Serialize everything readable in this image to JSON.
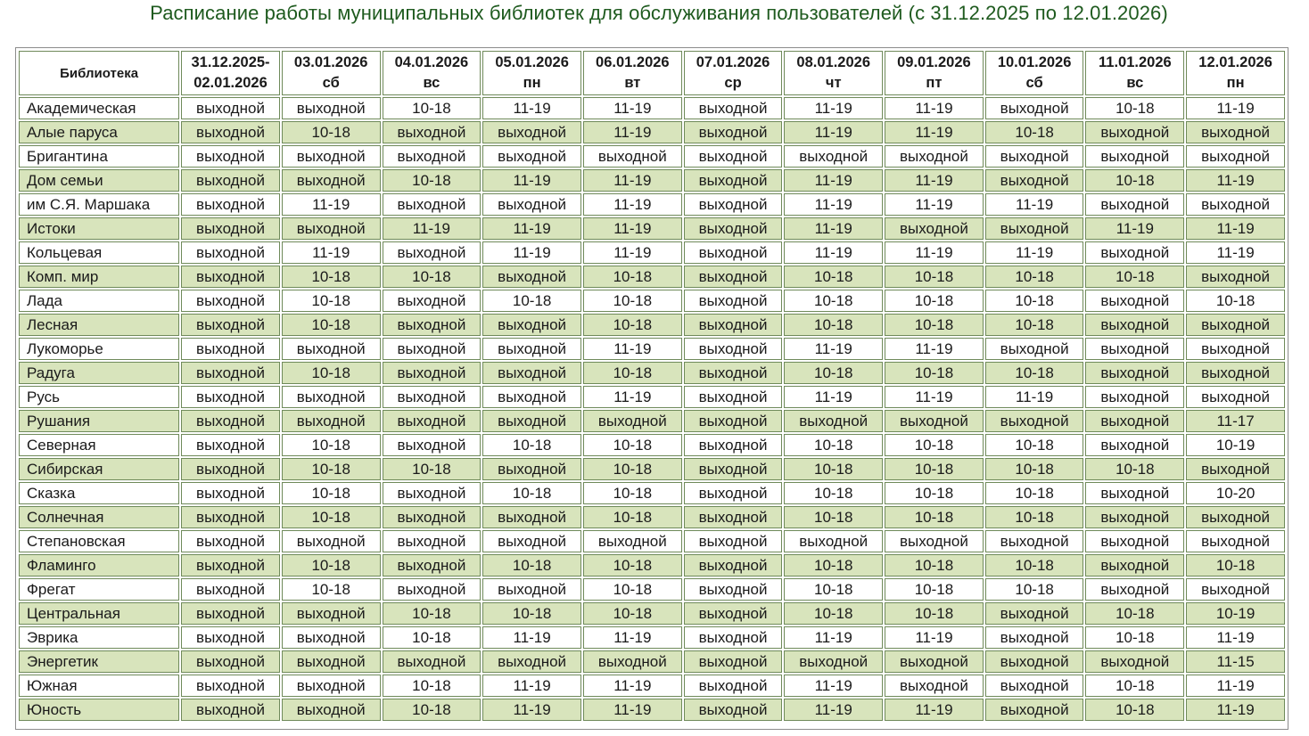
{
  "title": "Расписание работы муниципальных библиотек для обслуживания пользователей (с 31.12.2025 по 12.01.2026)",
  "header": {
    "library": "Библиотека",
    "columns": [
      {
        "date": "31.12.2025-",
        "day": "02.01.2026"
      },
      {
        "date": "03.01.2026",
        "day": "сб"
      },
      {
        "date": "04.01.2026",
        "day": "вс"
      },
      {
        "date": "05.01.2026",
        "day": "пн"
      },
      {
        "date": "06.01.2026",
        "day": "вт"
      },
      {
        "date": "07.01.2026",
        "day": "ср"
      },
      {
        "date": "08.01.2026",
        "day": "чт"
      },
      {
        "date": "09.01.2026",
        "day": "пт"
      },
      {
        "date": "10.01.2026",
        "day": "сб"
      },
      {
        "date": "11.01.2026",
        "day": "вс"
      },
      {
        "date": "12.01.2026",
        "day": "пн"
      }
    ]
  },
  "rows": [
    {
      "name": "Академическая",
      "cells": [
        "выходной",
        "выходной",
        "10-18",
        "11-19",
        "11-19",
        "выходной",
        "11-19",
        "11-19",
        "выходной",
        "10-18",
        "11-19"
      ]
    },
    {
      "name": "Алые паруса",
      "cells": [
        "выходной",
        "10-18",
        "выходной",
        "выходной",
        "11-19",
        "выходной",
        "11-19",
        "11-19",
        "10-18",
        "выходной",
        "выходной"
      ]
    },
    {
      "name": "Бригантина",
      "cells": [
        "выходной",
        "выходной",
        "выходной",
        "выходной",
        "выходной",
        "выходной",
        "выходной",
        "выходной",
        "выходной",
        "выходной",
        "выходной"
      ]
    },
    {
      "name": "Дом семьи",
      "cells": [
        "выходной",
        "выходной",
        "10-18",
        "11-19",
        "11-19",
        "выходной",
        "11-19",
        "11-19",
        "выходной",
        "10-18",
        "11-19"
      ]
    },
    {
      "name": "им С.Я. Маршака",
      "cells": [
        "выходной",
        "11-19",
        "выходной",
        "выходной",
        "11-19",
        "выходной",
        "11-19",
        "11-19",
        "11-19",
        "выходной",
        "выходной"
      ]
    },
    {
      "name": "Истоки",
      "cells": [
        "выходной",
        "выходной",
        "11-19",
        "11-19",
        "11-19",
        "выходной",
        "11-19",
        "выходной",
        "выходной",
        "11-19",
        "11-19"
      ]
    },
    {
      "name": "Кольцевая",
      "cells": [
        "выходной",
        "11-19",
        "выходной",
        "11-19",
        "11-19",
        "выходной",
        "11-19",
        "11-19",
        "11-19",
        "выходной",
        "11-19"
      ]
    },
    {
      "name": "Комп. мир",
      "cells": [
        "выходной",
        "10-18",
        "10-18",
        "выходной",
        "10-18",
        "выходной",
        "10-18",
        "10-18",
        "10-18",
        "10-18",
        "выходной"
      ]
    },
    {
      "name": "Лада",
      "cells": [
        "выходной",
        "10-18",
        "выходной",
        "10-18",
        "10-18",
        "выходной",
        "10-18",
        "10-18",
        "10-18",
        "выходной",
        "10-18"
      ]
    },
    {
      "name": "Лесная",
      "cells": [
        "выходной",
        "10-18",
        "выходной",
        "выходной",
        "10-18",
        "выходной",
        "10-18",
        "10-18",
        "10-18",
        "выходной",
        "выходной"
      ]
    },
    {
      "name": "Лукоморье",
      "cells": [
        "выходной",
        "выходной",
        "выходной",
        "выходной",
        "11-19",
        "выходной",
        "11-19",
        "11-19",
        "выходной",
        "выходной",
        "выходной"
      ]
    },
    {
      "name": "Радуга",
      "cells": [
        "выходной",
        "10-18",
        "выходной",
        "выходной",
        "10-18",
        "выходной",
        "10-18",
        "10-18",
        "10-18",
        "выходной",
        "выходной"
      ]
    },
    {
      "name": "Русь",
      "cells": [
        "выходной",
        "выходной",
        "выходной",
        "выходной",
        "11-19",
        "выходной",
        "11-19",
        "11-19",
        "11-19",
        "выходной",
        "выходной"
      ]
    },
    {
      "name": "Рушания",
      "cells": [
        "выходной",
        "выходной",
        "выходной",
        "выходной",
        "выходной",
        "выходной",
        "выходной",
        "выходной",
        "выходной",
        "выходной",
        "11-17"
      ]
    },
    {
      "name": "Северная",
      "cells": [
        "выходной",
        "10-18",
        "выходной",
        "10-18",
        "10-18",
        "выходной",
        "10-18",
        "10-18",
        "10-18",
        "выходной",
        "10-19"
      ]
    },
    {
      "name": "Сибирская",
      "cells": [
        "выходной",
        "10-18",
        "10-18",
        "выходной",
        "10-18",
        "выходной",
        "10-18",
        "10-18",
        "10-18",
        "10-18",
        "выходной"
      ]
    },
    {
      "name": "Сказка",
      "cells": [
        "выходной",
        "10-18",
        "выходной",
        "10-18",
        "10-18",
        "выходной",
        "10-18",
        "10-18",
        "10-18",
        "выходной",
        "10-20"
      ]
    },
    {
      "name": "Солнечная",
      "cells": [
        "выходной",
        "10-18",
        "выходной",
        "выходной",
        "10-18",
        "выходной",
        "10-18",
        "10-18",
        "10-18",
        "выходной",
        "выходной"
      ]
    },
    {
      "name": "Степановская",
      "cells": [
        "выходной",
        "выходной",
        "выходной",
        "выходной",
        "выходной",
        "выходной",
        "выходной",
        "выходной",
        "выходной",
        "выходной",
        "выходной"
      ]
    },
    {
      "name": "Фламинго",
      "cells": [
        "выходной",
        "10-18",
        "выходной",
        "10-18",
        "10-18",
        "выходной",
        "10-18",
        "10-18",
        "10-18",
        "выходной",
        "10-18"
      ]
    },
    {
      "name": "Фрегат",
      "cells": [
        "выходной",
        "10-18",
        "выходной",
        "выходной",
        "10-18",
        "выходной",
        "10-18",
        "10-18",
        "10-18",
        "выходной",
        "выходной"
      ]
    },
    {
      "name": "Центральная",
      "cells": [
        "выходной",
        "выходной",
        "10-18",
        "10-18",
        "10-18",
        "выходной",
        "10-18",
        "10-18",
        "выходной",
        "10-18",
        "10-19"
      ]
    },
    {
      "name": "Эврика",
      "cells": [
        "выходной",
        "выходной",
        "10-18",
        "11-19",
        "11-19",
        "выходной",
        "11-19",
        "11-19",
        "выходной",
        "10-18",
        "11-19"
      ]
    },
    {
      "name": "Энергетик",
      "cells": [
        "выходной",
        "выходной",
        "выходной",
        "выходной",
        "выходной",
        "выходной",
        "выходной",
        "выходной",
        "выходной",
        "выходной",
        "11-15"
      ]
    },
    {
      "name": "Южная",
      "cells": [
        "выходной",
        "выходной",
        "10-18",
        "11-19",
        "11-19",
        "выходной",
        "11-19",
        "выходной",
        "выходной",
        "10-18",
        "11-19"
      ]
    },
    {
      "name": "Юность",
      "cells": [
        "выходной",
        "выходной",
        "10-18",
        "11-19",
        "11-19",
        "выходной",
        "11-19",
        "11-19",
        "выходной",
        "10-18",
        "11-19"
      ]
    }
  ],
  "colors": {
    "title": "#1e5a1e",
    "row_alt": "#d8e4bc",
    "border": "#6f8a5a"
  }
}
